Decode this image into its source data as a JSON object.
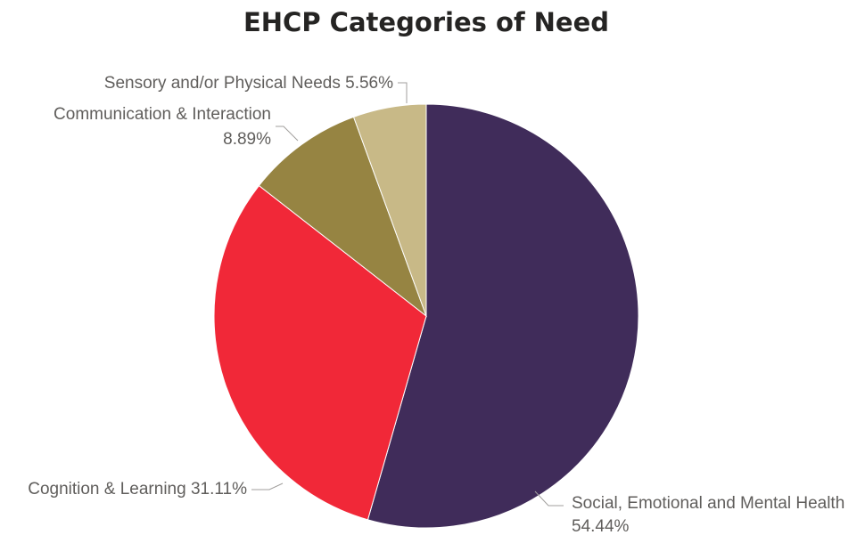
{
  "chart_data": {
    "type": "pie",
    "title": "EHCP Categories of Need",
    "slices": [
      {
        "name": "Social, Emotional and Mental Health",
        "value": 54.44,
        "label_lines": [
          "Social, Emotional and Mental Health",
          "54.44%"
        ],
        "color": "#402c5a"
      },
      {
        "name": "Cognition & Learning",
        "value": 31.11,
        "label_lines": [
          "Cognition & Learning 31.11%"
        ],
        "color": "#f12838"
      },
      {
        "name": "Communication & Interaction",
        "value": 8.89,
        "label_lines": [
          "Communication & Interaction",
          "8.89%"
        ],
        "color": "#968442"
      },
      {
        "name": "Sensory and/or Physical Needs",
        "value": 5.56,
        "label_lines": [
          "Sensory and/or Physical Needs 5.56%"
        ],
        "color": "#c8b987"
      }
    ],
    "legend": "none",
    "start_angle": "12 o'clock",
    "direction": "clockwise"
  }
}
